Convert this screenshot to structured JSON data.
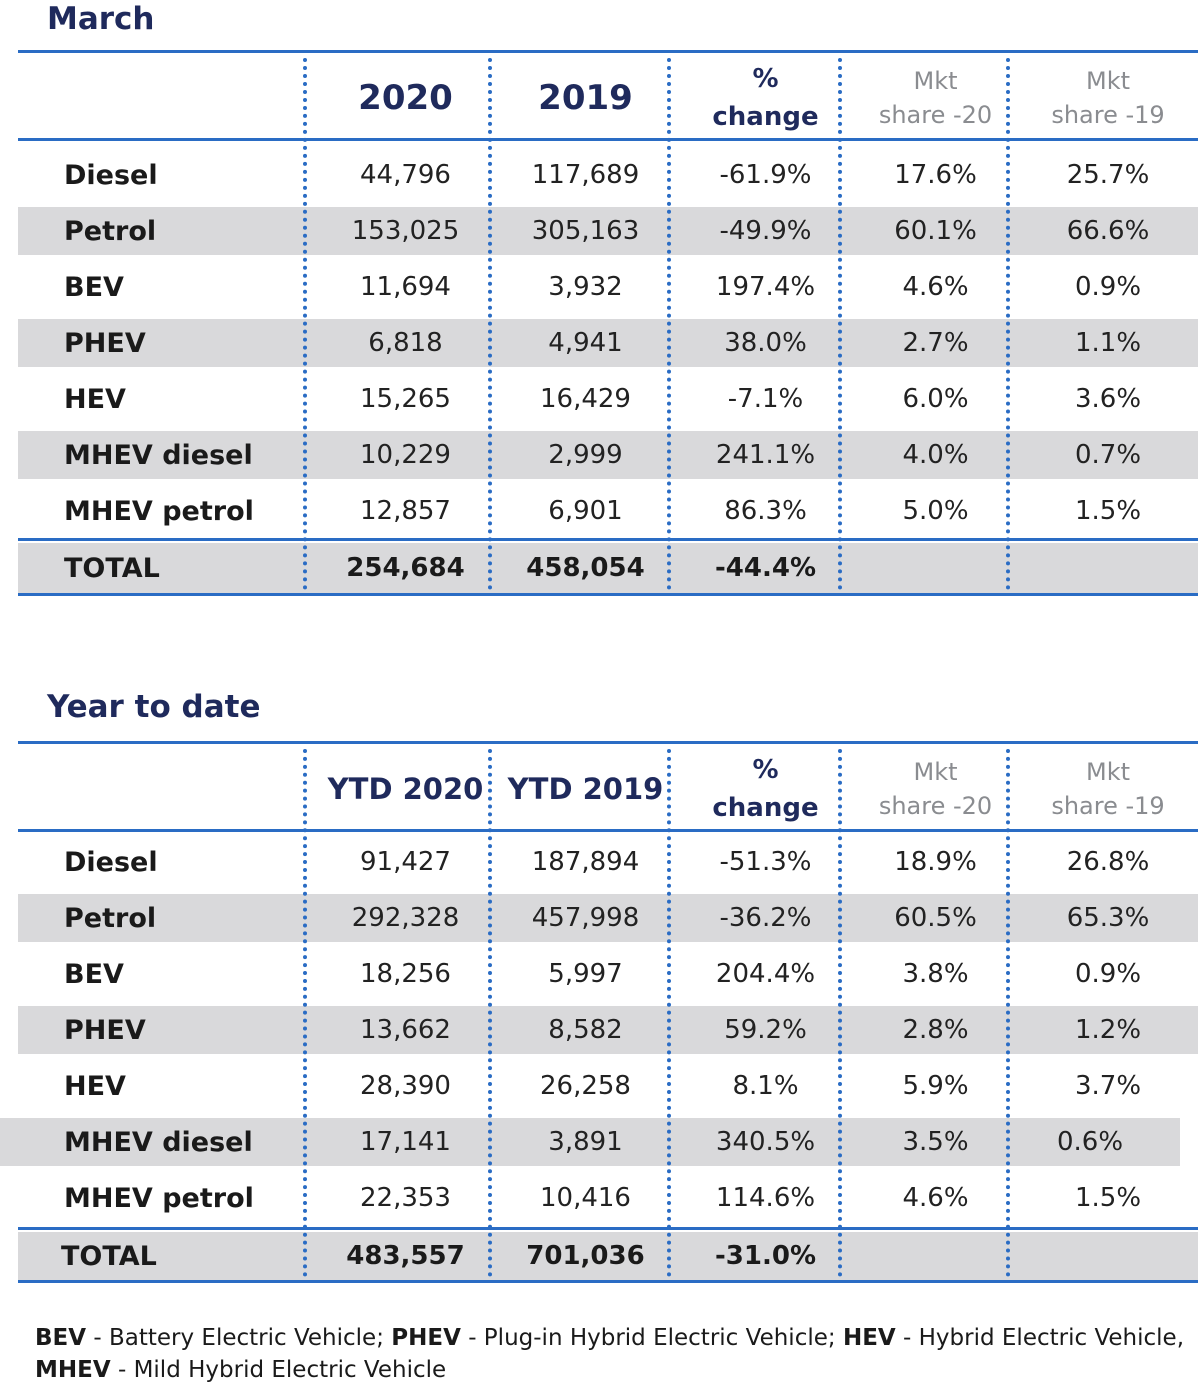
{
  "march": {
    "title": "March",
    "headers": {
      "col1": "2020",
      "col2": "2019",
      "col3_line1": "%",
      "col3_line2": "change",
      "col4_line1": "Mkt",
      "col4_line2": "share -20",
      "col5_line1": "Mkt",
      "col5_line2": "share -19"
    },
    "rows": [
      {
        "label": "Diesel",
        "v2020": "44,796",
        "v2019": "117,689",
        "change": "-61.9%",
        "share20": "17.6%",
        "share19": "25.7%"
      },
      {
        "label": "Petrol",
        "v2020": "153,025",
        "v2019": "305,163",
        "change": "-49.9%",
        "share20": "60.1%",
        "share19": "66.6%"
      },
      {
        "label": "BEV",
        "v2020": "11,694",
        "v2019": "3,932",
        "change": "197.4%",
        "share20": "4.6%",
        "share19": "0.9%"
      },
      {
        "label": "PHEV",
        "v2020": "6,818",
        "v2019": "4,941",
        "change": "38.0%",
        "share20": "2.7%",
        "share19": "1.1%"
      },
      {
        "label": "HEV",
        "v2020": "15,265",
        "v2019": "16,429",
        "change": "-7.1%",
        "share20": "6.0%",
        "share19": "3.6%"
      },
      {
        "label": "MHEV diesel",
        "v2020": "10,229",
        "v2019": "2,999",
        "change": "241.1%",
        "share20": "4.0%",
        "share19": "0.7%"
      },
      {
        "label": "MHEV petrol",
        "v2020": "12,857",
        "v2019": "6,901",
        "change": "86.3%",
        "share20": "5.0%",
        "share19": "1.5%"
      }
    ],
    "total": {
      "label": "TOTAL",
      "v2020": "254,684",
      "v2019": "458,054",
      "change": "-44.4%"
    }
  },
  "ytd": {
    "title": "Year to date",
    "headers": {
      "col1": "YTD 2020",
      "col2": "YTD 2019",
      "col3_line1": "%",
      "col3_line2": "change",
      "col4_line1": "Mkt",
      "col4_line2": "share -20",
      "col5_line1": "Mkt",
      "col5_line2": "share -19"
    },
    "rows": [
      {
        "label": "Diesel",
        "v2020": "91,427",
        "v2019": "187,894",
        "change": "-51.3%",
        "share20": "18.9%",
        "share19": "26.8%"
      },
      {
        "label": "Petrol",
        "v2020": "292,328",
        "v2019": "457,998",
        "change": "-36.2%",
        "share20": "60.5%",
        "share19": "65.3%"
      },
      {
        "label": "BEV",
        "v2020": "18,256",
        "v2019": "5,997",
        "change": "204.4%",
        "share20": "3.8%",
        "share19": "0.9%"
      },
      {
        "label": "PHEV",
        "v2020": "13,662",
        "v2019": "8,582",
        "change": "59.2%",
        "share20": "2.8%",
        "share19": "1.2%"
      },
      {
        "label": "HEV",
        "v2020": "28,390",
        "v2019": "26,258",
        "change": "8.1%",
        "share20": "5.9%",
        "share19": "3.7%"
      },
      {
        "label": "MHEV diesel",
        "v2020": "17,141",
        "v2019": "3,891",
        "change": "340.5%",
        "share20": "3.5%",
        "share19": "0.6%"
      },
      {
        "label": "MHEV petrol",
        "v2020": "22,353",
        "v2019": "10,416",
        "change": "114.6%",
        "share20": "4.6%",
        "share19": "1.5%"
      }
    ],
    "total": {
      "label": "TOTAL",
      "v2020": "483,557",
      "v2019": "701,036",
      "change": "-31.0%"
    }
  },
  "footnote": {
    "bev_abbr": "BEV",
    "bev_text": " - Battery Electric Vehicle; ",
    "phev_abbr": "PHEV",
    "phev_text": " - Plug-in Hybrid Electric Vehicle; ",
    "hev_abbr": "HEV",
    "hev_text": " - Hybrid Electric Vehicle,",
    "mhev_abbr": "MHEV",
    "mhev_text": " - Mild Hybrid Electric Vehicle"
  },
  "colors": {
    "title_navy": "#1f2a5c",
    "rule_blue": "#2a6cc4",
    "row_shade": "#d9d9db",
    "mkt_header_gray": "#8a8c90"
  }
}
